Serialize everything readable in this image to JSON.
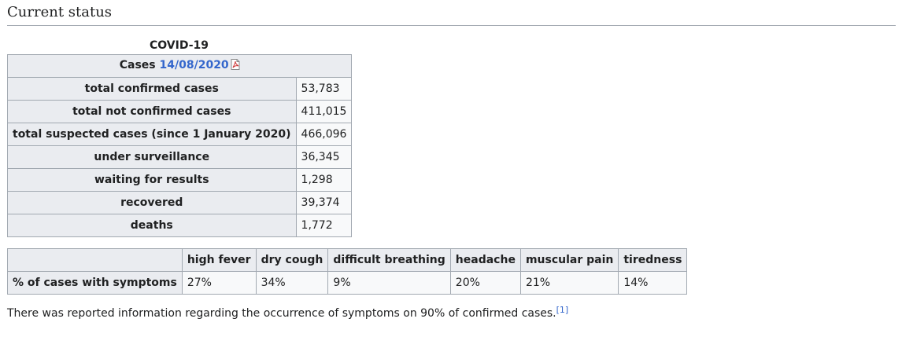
{
  "section": {
    "title": "Current status"
  },
  "covid_table": {
    "caption": "COVID-19",
    "header_prefix": "Cases",
    "header_date": "14/08/2020",
    "rows": [
      {
        "label": "total confirmed cases",
        "value": "53,783"
      },
      {
        "label": "total not confirmed cases",
        "value": "411,015"
      },
      {
        "label": "total suspected cases (since 1 January 2020)",
        "value": "466,096"
      },
      {
        "label": "under surveillance",
        "value": "36,345"
      },
      {
        "label": "waiting for results",
        "value": "1,298"
      },
      {
        "label": "recovered",
        "value": "39,374"
      },
      {
        "label": "deaths",
        "value": "1,772"
      }
    ]
  },
  "symptoms_table": {
    "row_label": "% of cases with symptoms",
    "columns": [
      "high fever",
      "dry cough",
      "difficult breathing",
      "headache",
      "muscular pain",
      "tiredness"
    ],
    "values": [
      "27%",
      "34%",
      "9%",
      "20%",
      "21%",
      "14%"
    ]
  },
  "note": {
    "text": "There was reported information regarding the occurrence of symptoms on 90% of confirmed cases.",
    "reference": "[1]"
  },
  "colors": {
    "link": "#3366cc",
    "header_bg": "#eaecf0",
    "cell_bg": "#f8f9fa",
    "border": "#a2a9b1"
  },
  "icons": {
    "pdf": "pdf-icon"
  }
}
